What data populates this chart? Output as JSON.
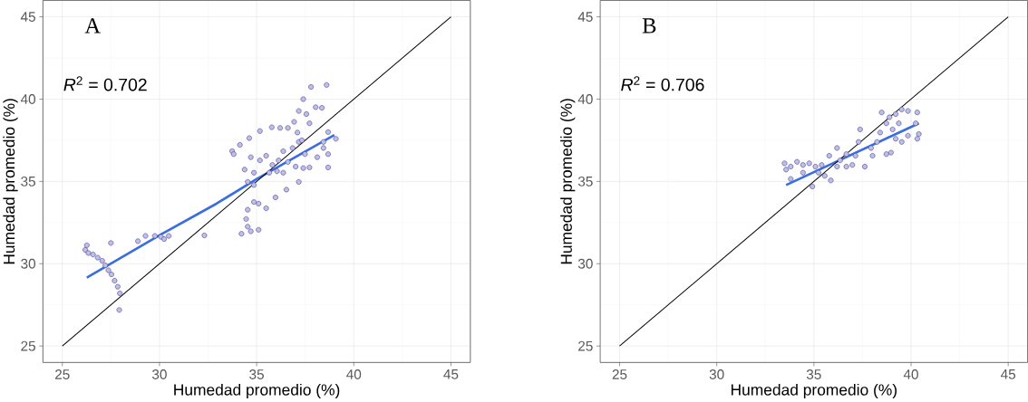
{
  "chart_data": [
    {
      "type": "scatter",
      "xlabel": "Humedad promedio (%)",
      "ylabel": "Humedad promedio (%)",
      "xlim": [
        24,
        46
      ],
      "ylim": [
        24,
        46
      ],
      "xticks": [
        25,
        30,
        35,
        40,
        45
      ],
      "yticks": [
        25,
        30,
        35,
        40,
        45
      ],
      "grid": true,
      "annotations": [
        "A",
        "*R*$^{2}$ = 0.702"
      ],
      "series": [
        {
          "type": "scatter",
          "marker": "circle",
          "color": "#2e2a9a",
          "x": [
            26.26,
            26.18,
            26.34,
            26.58,
            26.82,
            27.05,
            27.21,
            27.37,
            27.53,
            27.69,
            27.85,
            27.96,
            27.93,
            27.5,
            28.89,
            29.28,
            29.76,
            30.08,
            30.48,
            30.24,
            32.31,
            33.74,
            33.82,
            34.14,
            34.62,
            35.17,
            35.78,
            36.21,
            37.4,
            37.8,
            38.6,
            38.04,
            38.36,
            37.17,
            37.56,
            36.93,
            36.61,
            38.68,
            39.08,
            38.44,
            38.68,
            38.68,
            37.72,
            37.4,
            37.17,
            36.53,
            35.97,
            35.49,
            35.1,
            34.86,
            34.54,
            34.46,
            34.54,
            34.22,
            34.7,
            35.1,
            34.38,
            34.86,
            34.54,
            35.65,
            36.05,
            36.37,
            35.49,
            35.17,
            34.7,
            36.37,
            36.85,
            37.17,
            37.49,
            38.12,
            38.44,
            36.61,
            37.01,
            34.86,
            35.81,
            36.13,
            37.1,
            37.33,
            37.72
          ],
          "values": [
            31.12,
            30.84,
            30.65,
            30.56,
            30.37,
            30.18,
            29.9,
            29.6,
            29.35,
            28.97,
            28.6,
            28.2,
            27.19,
            31.26,
            31.37,
            31.69,
            31.69,
            31.63,
            31.69,
            31.5,
            31.72,
            36.84,
            36.66,
            37.22,
            37.63,
            38.06,
            38.29,
            38.25,
            40.0,
            40.74,
            40.86,
            39.51,
            39.47,
            39.28,
            39.09,
            38.62,
            38.25,
            38.0,
            37.59,
            37.4,
            36.66,
            35.85,
            35.85,
            35.81,
            34.97,
            34.5,
            34.03,
            33.37,
            33.65,
            33.75,
            33.28,
            32.72,
            32.25,
            31.82,
            31.97,
            32.06,
            35.72,
            35.53,
            34.97,
            35.53,
            35.62,
            35.53,
            36.56,
            36.28,
            36.47,
            36.84,
            37.03,
            37.4,
            36.66,
            36.47,
            37.03,
            36.18,
            35.9,
            34.78,
            36.0,
            36.28,
            37.97,
            37.5,
            38.53
          ]
        },
        {
          "type": "line",
          "marker": "none",
          "line_style": "solid",
          "color": "#3a6ee0",
          "x": [
            26.26,
            30.08,
            32.95,
            35.01,
            39.0
          ],
          "values": [
            29.16,
            31.78,
            33.66,
            35.15,
            37.82
          ]
        },
        {
          "type": "line",
          "marker": "none",
          "line_style": "solid",
          "color": "#000000",
          "x": [
            25,
            45
          ],
          "values": [
            25,
            45
          ]
        }
      ]
    },
    {
      "type": "scatter",
      "xlabel": "Humedad promedio (%)",
      "ylabel": "Humedad promedio (%)",
      "xlim": [
        24,
        46
      ],
      "ylim": [
        24,
        46
      ],
      "xticks": [
        25,
        30,
        35,
        40,
        45
      ],
      "yticks": [
        25,
        30,
        35,
        40,
        45
      ],
      "grid": true,
      "annotations": [
        "B",
        "*R*$^{2}$ = 0.706"
      ],
      "series": [
        {
          "type": "scatter",
          "marker": "circle",
          "color": "#2e2a9a",
          "x": [
            33.49,
            33.57,
            33.81,
            34.13,
            34.44,
            34.76,
            35.08,
            35.4,
            34.92,
            35.56,
            35.87,
            35.24,
            35.79,
            36.19,
            36.67,
            36.98,
            37.38,
            37.3,
            37.62,
            37.94,
            38.25,
            38.41,
            38.73,
            38.49,
            38.89,
            39.21,
            39.52,
            39.84,
            40.32,
            40.24,
            40.4,
            40.32,
            39.84,
            39.52,
            39.21,
            38.97,
            38.73,
            38.02,
            36.35,
            36.67,
            36.19,
            37.14,
            39.05,
            39.37,
            33.81,
            34.44
          ],
          "values": [
            36.1,
            35.72,
            35.9,
            36.19,
            36.0,
            36.1,
            35.9,
            36.0,
            34.69,
            35.34,
            35.06,
            35.53,
            36.56,
            37.03,
            36.66,
            36.0,
            38.16,
            37.4,
            35.9,
            37.03,
            37.4,
            37.97,
            38.53,
            39.19,
            38.9,
            39.09,
            39.37,
            39.28,
            39.19,
            38.53,
            37.88,
            37.59,
            37.78,
            37.4,
            37.59,
            36.75,
            36.66,
            36.56,
            36.28,
            35.9,
            35.9,
            36.56,
            38.16,
            38.53,
            35.15,
            35.53
          ]
        },
        {
          "type": "line",
          "marker": "none",
          "line_style": "solid",
          "color": "#3a6ee0",
          "x": [
            33.57,
            40.4
          ],
          "values": [
            34.78,
            38.53
          ]
        },
        {
          "type": "line",
          "marker": "none",
          "line_style": "solid",
          "color": "#000000",
          "x": [
            25,
            45
          ],
          "values": [
            25,
            45
          ]
        }
      ]
    }
  ]
}
